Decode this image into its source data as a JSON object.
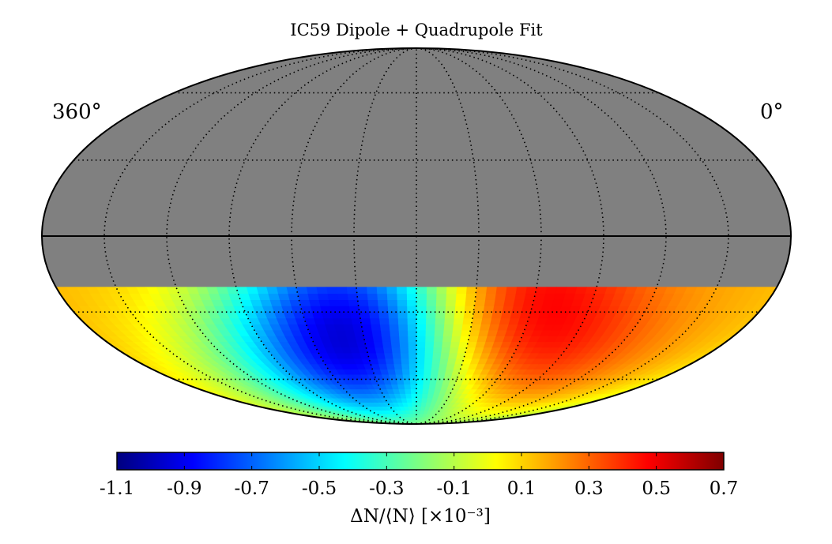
{
  "chart_data": {
    "type": "heatmap",
    "projection": "mollweide",
    "title": "IC59 Dipole + Quadrupole Fit",
    "longitude_labels": {
      "left": "360°",
      "right": "0°"
    },
    "masked_region_color": "#808080",
    "data_dec_range": [
      -90,
      -20
    ],
    "graticule": {
      "meridian_step_deg": 30,
      "parallel_step_deg": 30,
      "style": "dotted"
    },
    "equator_line": true,
    "colormap": "jet",
    "colorbar": {
      "min": -1.1,
      "max": 0.7,
      "ticks": [
        -1.1,
        -0.9,
        -0.7,
        -0.5,
        -0.3,
        -0.1,
        0.1,
        0.3,
        0.5,
        0.7
      ],
      "tick_labels": [
        "-1.1",
        "-0.9",
        "-0.7",
        "-0.5",
        "-0.3",
        "-0.1",
        "0.1",
        "0.3",
        "0.5",
        "0.7"
      ],
      "label": "ΔN/⟨N⟩ [×10⁻³]"
    },
    "features": [
      {
        "name": "minimum",
        "ra_deg": 215,
        "dec_deg": -45,
        "value": -1.1
      },
      {
        "name": "maximum",
        "ra_deg": 130,
        "dec_deg": -45,
        "value": 0.7
      }
    ]
  },
  "colors": {
    "jet_stops": [
      "#00007f",
      "#0000ff",
      "#007fff",
      "#00ffff",
      "#7fff7f",
      "#ffff00",
      "#ff7f00",
      "#ff0000",
      "#7f0000"
    ]
  }
}
